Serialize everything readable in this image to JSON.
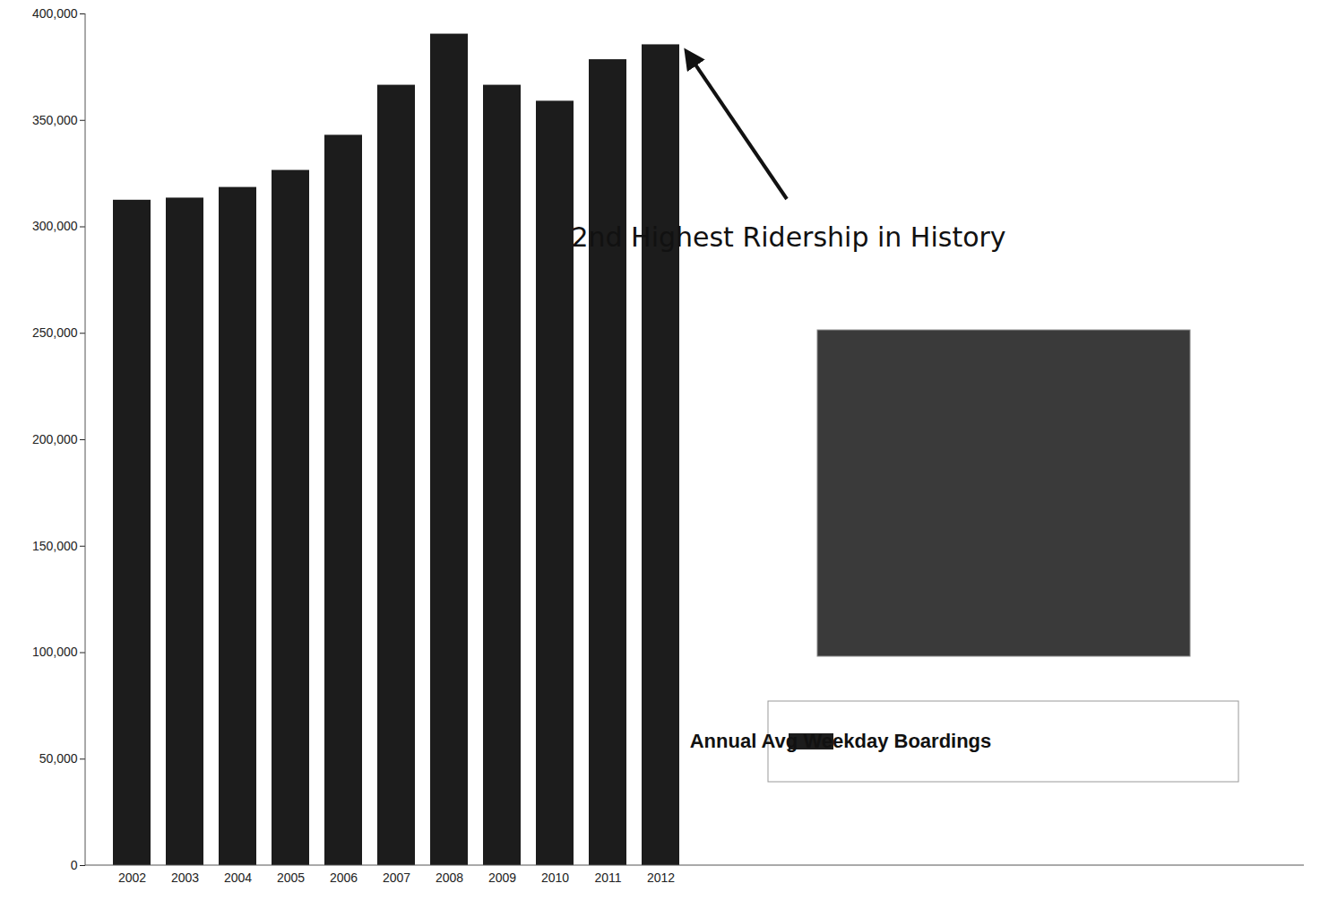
{
  "chart_data": {
    "type": "bar",
    "categories": [
      "2002",
      "2003",
      "2004",
      "2005",
      "2006",
      "2007",
      "2008",
      "2009",
      "2010",
      "2011",
      "2012"
    ],
    "series": [
      {
        "name": "Annual Avg Weekday Boardings",
        "color": "#1c1c1c",
        "values": [
          312500,
          313500,
          318500,
          326500,
          343000,
          366500,
          390500,
          366500,
          359000,
          378500,
          385500
        ]
      }
    ],
    "annotation": "2nd Highest Ridership in History",
    "ylim": [
      0,
      400000
    ],
    "yticks": [
      0,
      {
        "value": 50000,
        "label": "50,000"
      },
      {
        "value": 100000,
        "label": "100,000"
      },
      {
        "value": 150000,
        "label": "150,000"
      },
      {
        "value": 200000,
        "label": "200,000"
      },
      {
        "value": 250000,
        "label": "250,000"
      },
      {
        "value": 300000,
        "label": "300,000"
      },
      {
        "value": 350000,
        "label": "350,000"
      },
      {
        "value": 400000,
        "label": "400,000"
      }
    ],
    "grid": false,
    "legend": "right"
  }
}
